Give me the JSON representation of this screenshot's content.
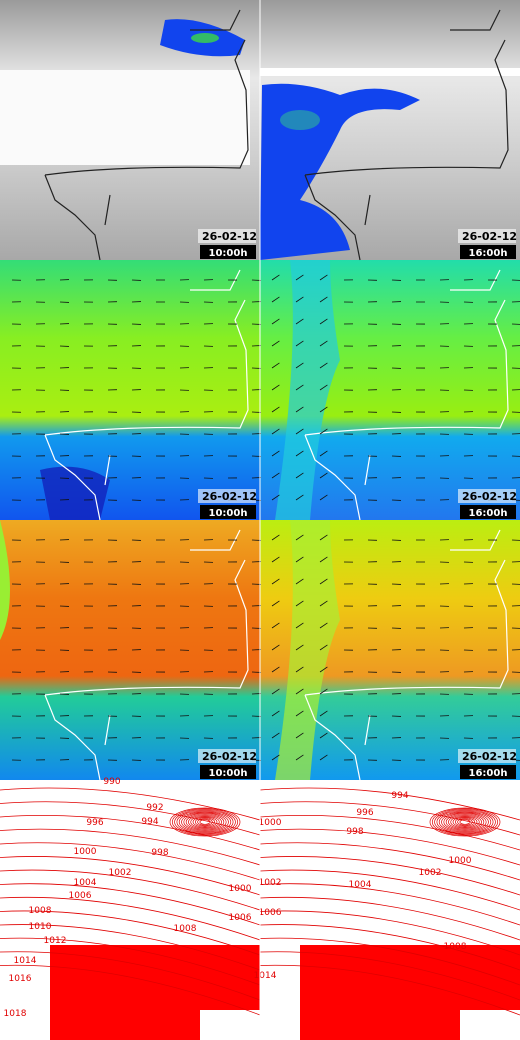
{
  "panels": [
    {
      "date": "26-02-12",
      "time": "10:00h"
    },
    {
      "date": "26-02-12",
      "time": "16:00h"
    },
    {
      "date": "26-02-12",
      "time": "10:00h"
    },
    {
      "date": "26-02-12",
      "time": "16:00h"
    },
    {
      "date": "26-02-12",
      "time": "10:00h"
    },
    {
      "date": "26-02-12",
      "time": "16:00h"
    }
  ],
  "isobars_left": [
    "990",
    "992",
    "994",
    "996",
    "998",
    "1000",
    "1002",
    "1004",
    "1006",
    "1008",
    "1010",
    "1012",
    "1014",
    "1016",
    "1018",
    "1000",
    "1006",
    "1008"
  ],
  "isobars_right": [
    "994",
    "996",
    "998",
    "1000",
    "1000",
    "1002",
    "1002",
    "1004",
    "1006",
    "1008",
    "1014"
  ]
}
